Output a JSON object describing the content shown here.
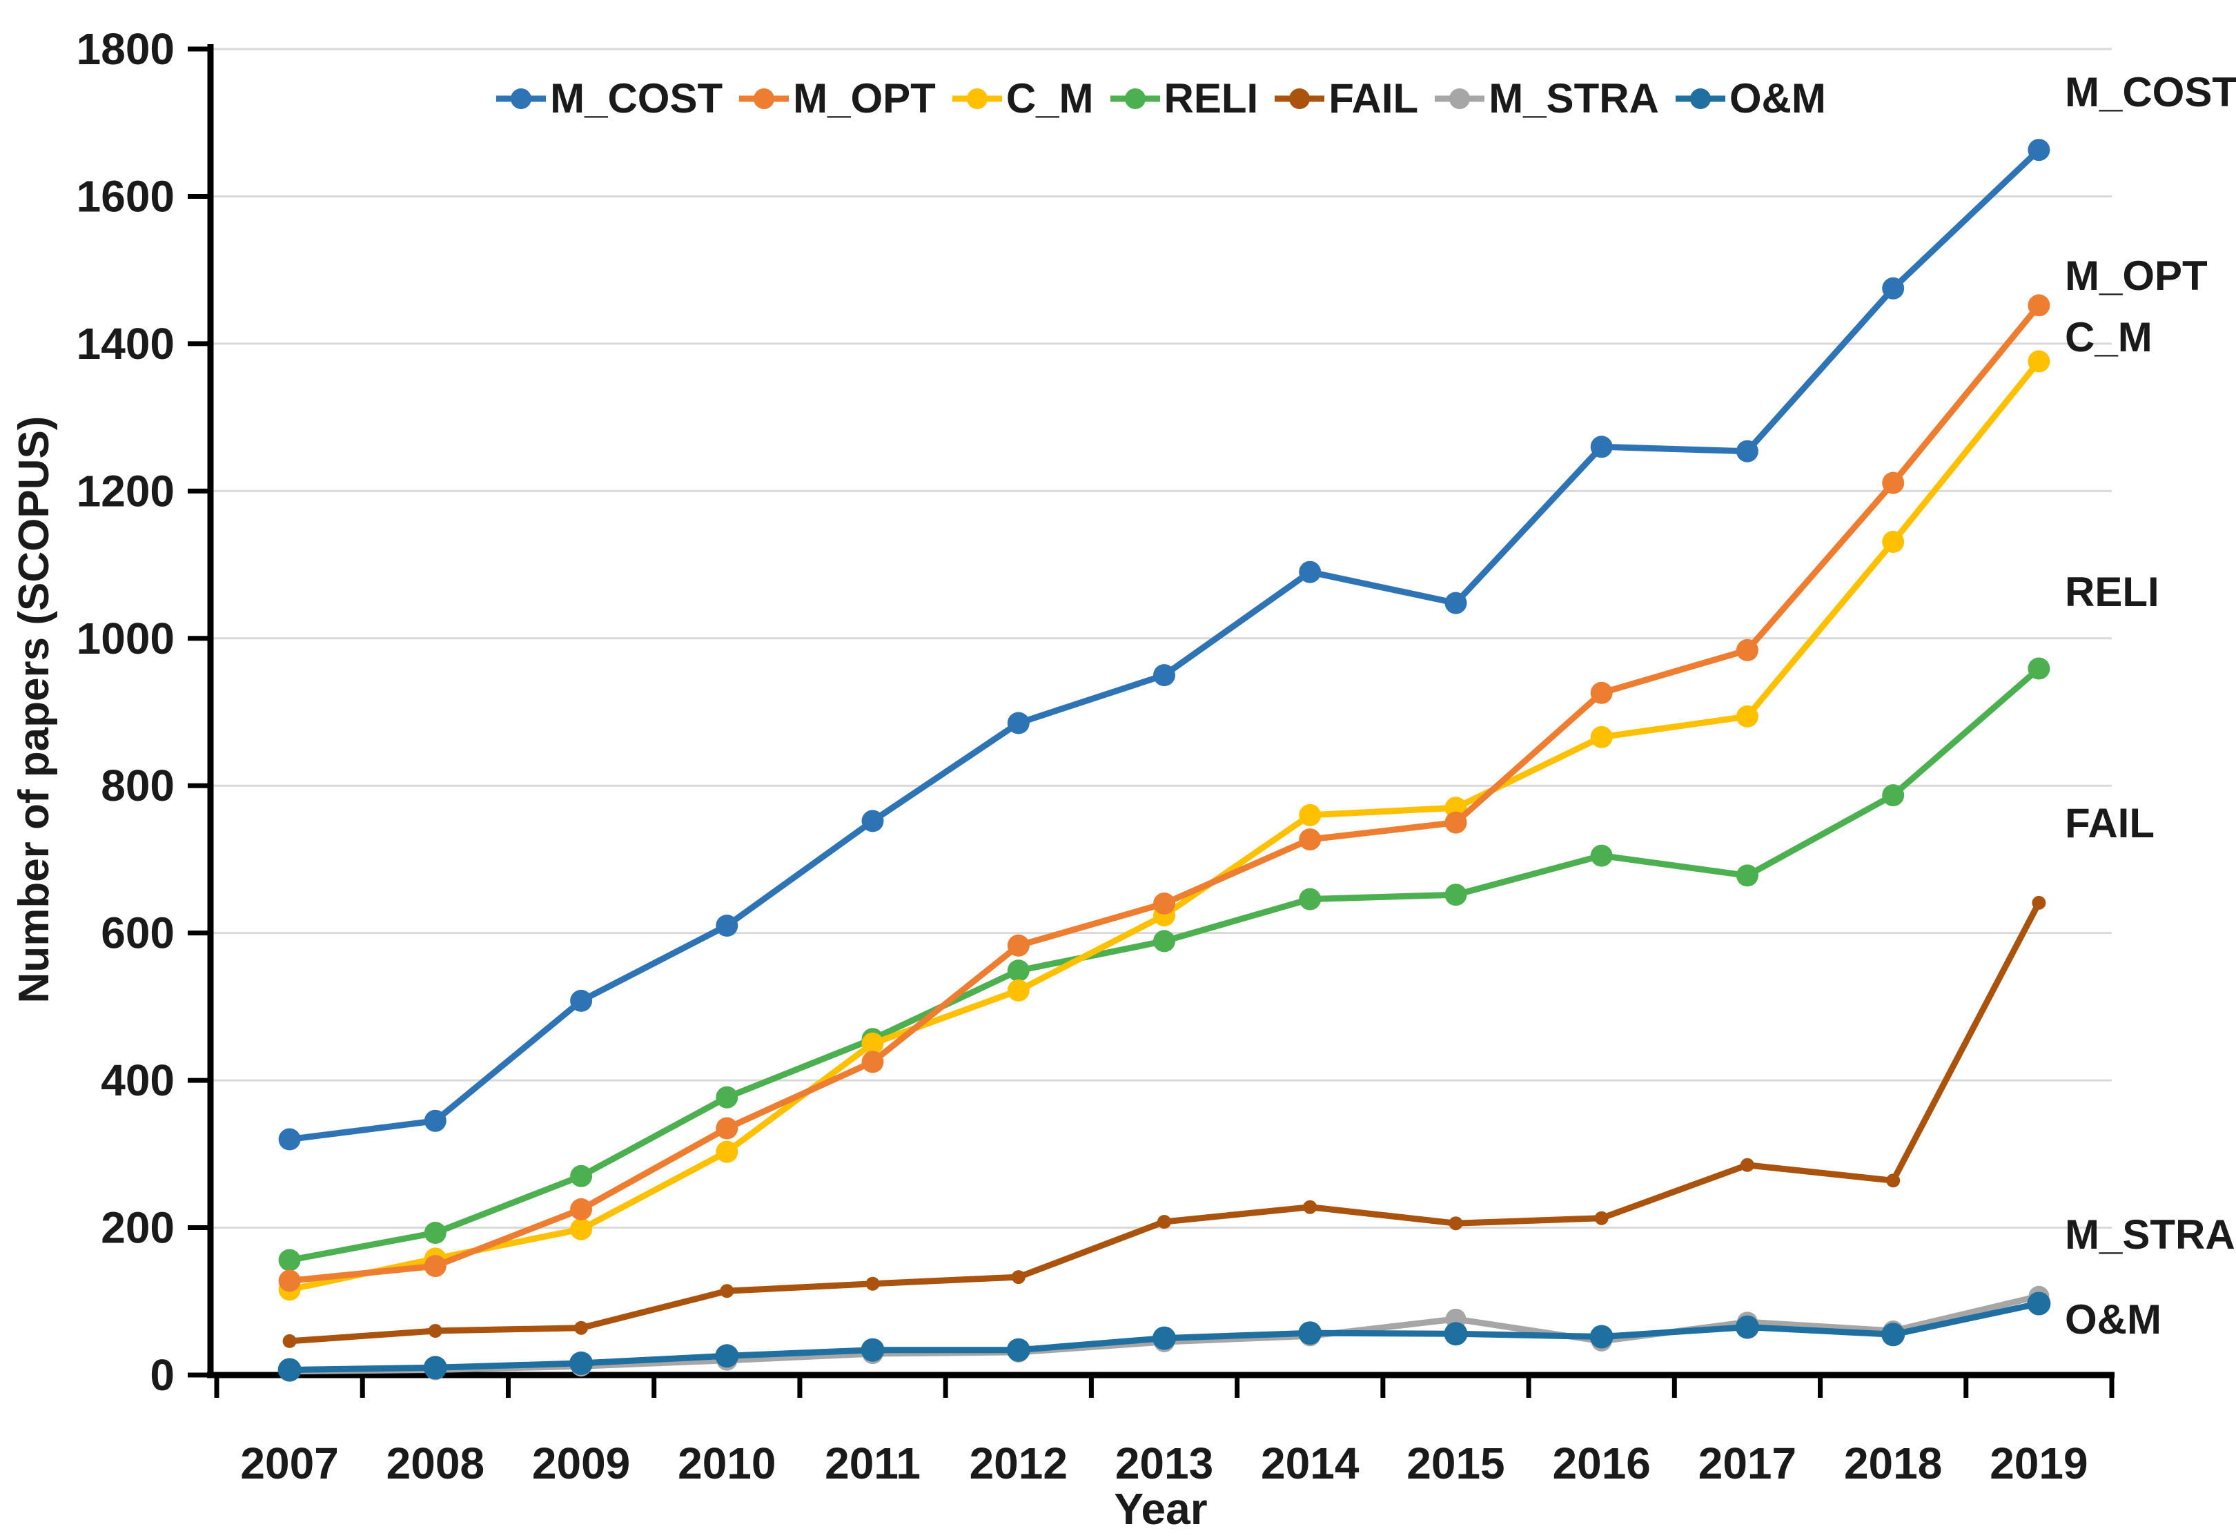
{
  "chart_data": {
    "type": "line",
    "title": "",
    "xlabel": "Year",
    "ylabel": "Number of papers (SCOPUS)",
    "x": [
      "2007",
      "2008",
      "2009",
      "2010",
      "2011",
      "2012",
      "2013",
      "2014",
      "2015",
      "2016",
      "2017",
      "2018",
      "2019"
    ],
    "ylim": [
      0,
      1800
    ],
    "ytick_step": 200,
    "ytick_labels": [
      "0",
      "200",
      "400",
      "600",
      "800",
      "1000",
      "1200",
      "1400",
      "1600",
      "1800"
    ],
    "grid": "horizontal",
    "legend_position": "top-center",
    "series": [
      {
        "name": "M_COST",
        "color": "#2E74B5",
        "values": [
          320,
          345,
          508,
          610,
          752,
          885,
          950,
          1090,
          1048,
          1260,
          1254,
          1475,
          1663
        ]
      },
      {
        "name": "M_OPT",
        "color": "#ED7D31",
        "values": [
          128,
          148,
          225,
          335,
          425,
          583,
          640,
          727,
          750,
          926,
          984,
          1211,
          1452
        ]
      },
      {
        "name": "C_M",
        "color": "#FFC000",
        "values": [
          116,
          158,
          198,
          303,
          450,
          522,
          624,
          760,
          770,
          866,
          894,
          1131,
          1376
        ]
      },
      {
        "name": "RELI",
        "color": "#4CAF50",
        "values": [
          156,
          193,
          270,
          377,
          456,
          549,
          589,
          646,
          652,
          705,
          678,
          787,
          959
        ]
      },
      {
        "name": "FAIL",
        "color": "#A9530E",
        "values": [
          46,
          60,
          64,
          114,
          124,
          133,
          208,
          228,
          206,
          213,
          285,
          264,
          641
        ]
      },
      {
        "name": "M_STRA",
        "color": "#A6A6A6",
        "values": [
          5,
          7,
          12,
          20,
          29,
          31,
          45,
          53,
          76,
          46,
          72,
          60,
          107
        ]
      },
      {
        "name": "O&M",
        "color": "#1F6FA0",
        "values": [
          7,
          10,
          16,
          26,
          34,
          34,
          50,
          57,
          56,
          52,
          65,
          55,
          97
        ]
      }
    ],
    "right_labels": [
      "M_COST",
      "M_OPT",
      "C_M",
      "RELI",
      "FAIL",
      "M_STRA",
      "O&M"
    ],
    "colors": {
      "grid": "#D9D9D9",
      "axis": "#000000",
      "text": "#1A1A1A"
    }
  }
}
